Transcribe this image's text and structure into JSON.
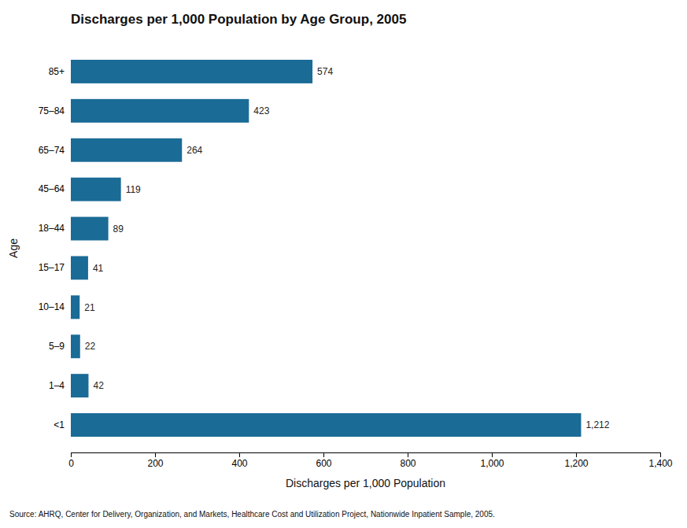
{
  "chart_data": {
    "type": "bar",
    "orientation": "horizontal",
    "title": "Discharges per 1,000 Population by Age Group, 2005",
    "xlabel": "Discharges per 1,000 Population",
    "ylabel": "Age",
    "source": "Source:   AHRQ, Center for Delivery, Organization, and Markets, Healthcare Cost and Utilization Project, Nationwide Inpatient Sample, 2005.",
    "categories": [
      "85+",
      "75–84",
      "65–74",
      "45–64",
      "18–44",
      "15–17",
      "10–14",
      "5–9",
      "1–4",
      "<1"
    ],
    "values": [
      574,
      423,
      264,
      119,
      89,
      41,
      21,
      22,
      42,
      1212
    ],
    "value_labels": [
      "574",
      "423",
      "264",
      "119",
      "89",
      "41",
      "21",
      "22",
      "42",
      "1,212"
    ],
    "data_labels": true,
    "color": "#1a6b96",
    "xlim": [
      0,
      1400
    ],
    "xticks": [
      0,
      200,
      400,
      600,
      800,
      {
        "value": 1000,
        "label": "1,000"
      },
      {
        "value": 1200,
        "label": "1,200"
      },
      {
        "value": 1400,
        "label": "1,400"
      }
    ],
    "grid": false
  }
}
